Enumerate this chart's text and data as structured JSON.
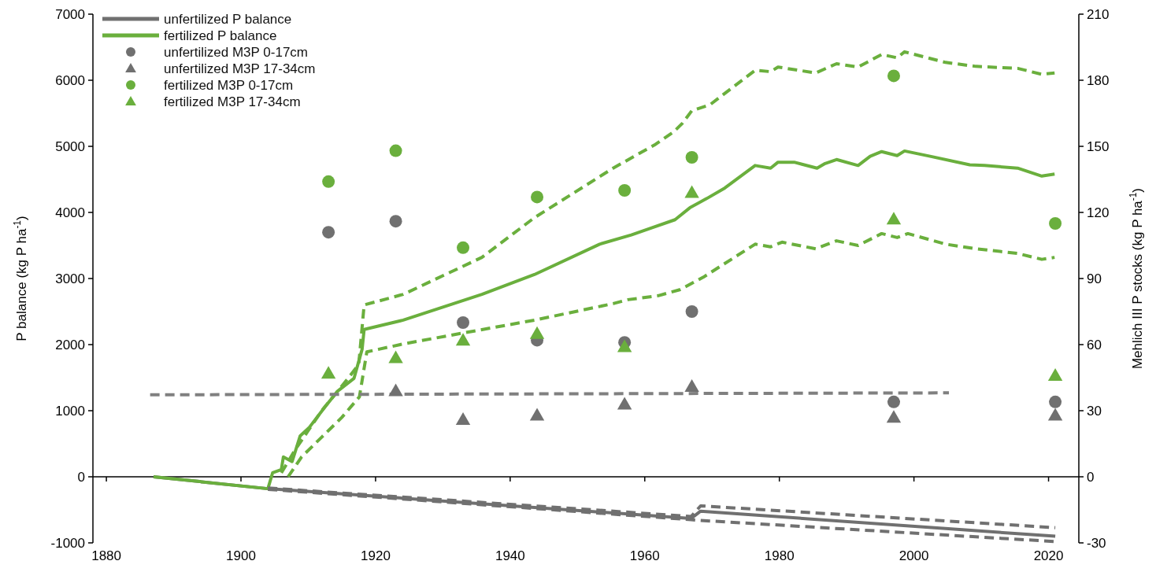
{
  "chart_data": {
    "type": "line",
    "xlim": [
      1878,
      2024.5
    ],
    "xticks": [
      1880,
      1900,
      1920,
      1940,
      1960,
      1980,
      2000,
      2020
    ],
    "ylim": [
      -1000,
      7000
    ],
    "yticks": [
      -1000,
      0,
      1000,
      2000,
      3000,
      4000,
      5000,
      6000,
      7000
    ],
    "y2lim": [
      -30,
      210
    ],
    "y2ticks": [
      -30,
      0,
      30,
      60,
      90,
      120,
      150,
      180,
      210
    ],
    "ylabel": "P balance (kg P ha$^{-1}$)",
    "y2label": "Mehlich III P stocks (kg P ha$^{-1}$)",
    "legend": "top left",
    "series": [
      {
        "name": "unfertilized P balance",
        "color": "#707070",
        "line_style": "solid",
        "x": [
          1887,
          1904,
          1966.9,
          1968.3,
          2021
        ],
        "values": [
          0,
          -180,
          -630,
          -520,
          -900
        ]
      },
      {
        "name": "fertilized P balance",
        "color": "#6aaf3d",
        "line_style": "solid",
        "x": [
          1887,
          1904,
          1904.7,
          1906,
          1906.3,
          1907.6,
          1908.8,
          1910.1,
          1912.5,
          1914.4,
          1916.8,
          1918,
          1918.3,
          1924.1,
          1935.8,
          1943.6,
          1953.3,
          1958,
          1961.1,
          1964.5,
          1966.7,
          1969.2,
          1971.9,
          1976.4,
          1978.7,
          1979.8,
          1982.2,
          1985.6,
          1986.8,
          1988.5,
          1991.7,
          1993.5,
          1995.2,
          1997.5,
          1998.6,
          2002.4,
          2008.3,
          2010.5,
          2015.4,
          2019,
          2020.9
        ],
        "values": [
          0,
          -180,
          60,
          110,
          300,
          230,
          620,
          740,
          1060,
          1300,
          1490,
          1930,
          2230,
          2370,
          2760,
          3060,
          3520,
          3660,
          3770,
          3890,
          4070,
          4210,
          4370,
          4710,
          4670,
          4760,
          4760,
          4670,
          4740,
          4800,
          4710,
          4850,
          4920,
          4860,
          4930,
          4850,
          4720,
          4710,
          4670,
          4550,
          4580
        ]
      },
      {
        "color": "#707070",
        "line_style": "dashed",
        "x": [
          1904,
          1966.9,
          1968.3,
          2021
        ],
        "values": [
          -170,
          -600,
          -440,
          -770
        ]
      },
      {
        "color": "#707070",
        "line_style": "dashed",
        "x": [
          1904,
          1966.9,
          1968.3,
          2021
        ],
        "values": [
          -190,
          -650,
          -660,
          -980
        ]
      },
      {
        "color": "#6aaf3d",
        "line_style": "dashed",
        "x": [
          1906,
          1908,
          1910,
          1912,
          1914,
          1916,
          1917.5,
          1918.3,
          1924.1,
          1935.8,
          1943.6,
          1955.3,
          1961.6,
          1964.3,
          1965.6,
          1967,
          1969.7,
          1976.4,
          1978.7,
          1979.8,
          1985.4,
          1988.5,
          1991.7,
          1995.2,
          1997.5,
          1998.6,
          2004.7,
          2009.2,
          2015.4,
          2019,
          2020.9
        ],
        "values": [
          60,
          400,
          700,
          1000,
          1250,
          1500,
          1700,
          2600,
          2760,
          3320,
          3920,
          4670,
          5030,
          5220,
          5350,
          5540,
          5630,
          6150,
          6130,
          6200,
          6110,
          6250,
          6200,
          6390,
          6340,
          6430,
          6270,
          6210,
          6180,
          6090,
          6110
        ]
      },
      {
        "color": "#6aaf3d",
        "line_style": "dashed",
        "x": [
          1907,
          1909,
          1912,
          1915,
          1917.6,
          1918.7,
          1924.1,
          1932.7,
          1943.6,
          1955.3,
          1957.5,
          1962,
          1965.2,
          1968.7,
          1976.4,
          1978.7,
          1980.4,
          1985.4,
          1988.5,
          1991.7,
          1995.2,
          1997.5,
          1999.1,
          2004.7,
          2009.2,
          2015.4,
          2019,
          2020.9
        ],
        "values": [
          0,
          300,
          600,
          900,
          1210,
          1890,
          2010,
          2170,
          2370,
          2620,
          2680,
          2740,
          2830,
          3020,
          3520,
          3480,
          3550,
          3450,
          3570,
          3500,
          3680,
          3620,
          3680,
          3520,
          3450,
          3380,
          3290,
          3320
        ]
      },
      {
        "color": "#808080",
        "line_style": "dashed",
        "x": [
          1886.5,
          2005.2
        ],
        "values": [
          1240,
          1270
        ]
      },
      {
        "name": "unfertilized M3P 0-17cm",
        "type": "scatter",
        "axis": "y2",
        "marker": "circle",
        "color": "#707070",
        "x": [
          1913,
          1923,
          1933,
          1944,
          1957,
          1967,
          1997,
          2021
        ],
        "values": [
          111,
          116,
          70,
          62,
          61,
          75,
          34,
          34
        ]
      },
      {
        "name": "unfertilized M3P 17-34cm",
        "type": "scatter",
        "axis": "y2",
        "marker": "triangle",
        "color": "#707070",
        "x": [
          1923,
          1933,
          1944,
          1957,
          1967,
          1997,
          2021
        ],
        "values": [
          39,
          26,
          28,
          33,
          41,
          27,
          28
        ]
      },
      {
        "name": "fertilized M3P 0-17cm",
        "type": "scatter",
        "axis": "y2",
        "marker": "circle",
        "color": "#6aaf3d",
        "x": [
          1913,
          1923,
          1933,
          1944,
          1957,
          1967,
          1997,
          2021
        ],
        "values": [
          134,
          148,
          104,
          127,
          130,
          145,
          182,
          115
        ]
      },
      {
        "name": "fertilized M3P 17-34cm",
        "type": "scatter",
        "axis": "y2",
        "marker": "triangle",
        "color": "#6aaf3d",
        "x": [
          1913,
          1923,
          1933,
          1944,
          1957,
          1967,
          1997,
          2021
        ],
        "values": [
          47,
          54,
          62,
          65,
          59,
          129,
          117,
          46
        ]
      }
    ]
  }
}
